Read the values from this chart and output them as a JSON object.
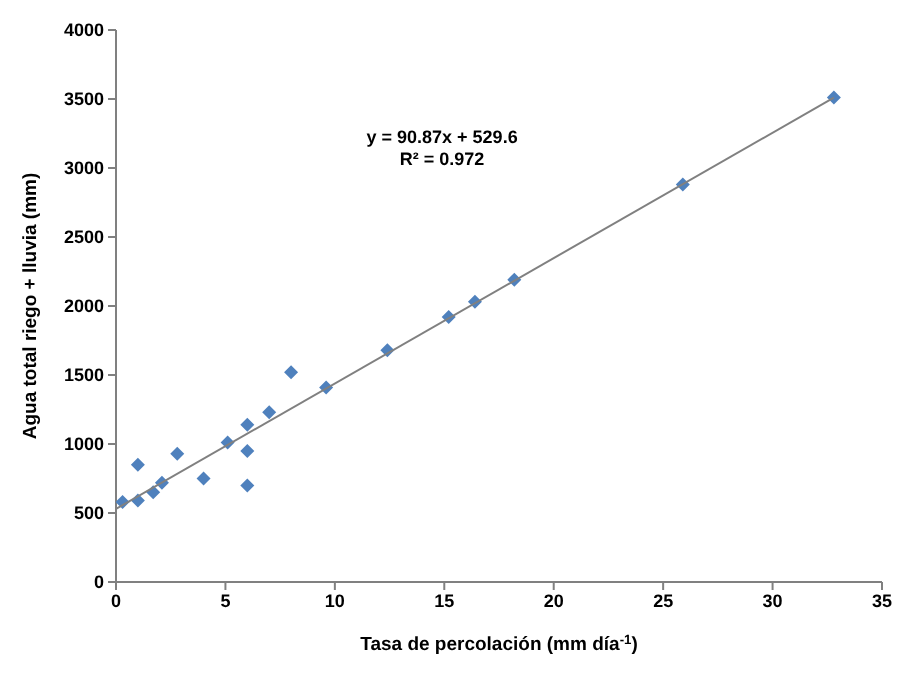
{
  "chart_data": {
    "type": "scatter",
    "xlabel": "Tasa de percolación (mm día$^{-1}$)",
    "ylabel": "Agua total riego + lluvia (mm)",
    "annotations": [
      "y = 90.87x + 529.6",
      "R² = 0.972"
    ],
    "xlim": [
      0,
      35
    ],
    "xticks": [
      0,
      5,
      10,
      15,
      20,
      25,
      30,
      35
    ],
    "ylim": [
      0,
      4000
    ],
    "yticks": [
      0,
      500,
      1000,
      1500,
      2000,
      2500,
      3000,
      3500,
      4000
    ],
    "marker": "diamond",
    "series": [
      {
        "type": "scatter",
        "color": "#4f81bd",
        "x": [
          0.3,
          1,
          1,
          1.7,
          2.1,
          2.8,
          4,
          5.1,
          6,
          6,
          6,
          7,
          8,
          9.6,
          12.4,
          15.2,
          16.4,
          18.2,
          25.9,
          32.8
        ],
        "values": [
          580,
          850,
          590,
          650,
          720,
          930,
          750,
          1010,
          1140,
          950,
          700,
          1230,
          1520,
          1410,
          1680,
          1920,
          2030,
          2190,
          2880,
          3510
        ]
      },
      {
        "type": "line",
        "color": "#808080",
        "marker": "none",
        "x": [
          0,
          32.8
        ],
        "values": [
          530,
          3510
        ]
      }
    ]
  }
}
